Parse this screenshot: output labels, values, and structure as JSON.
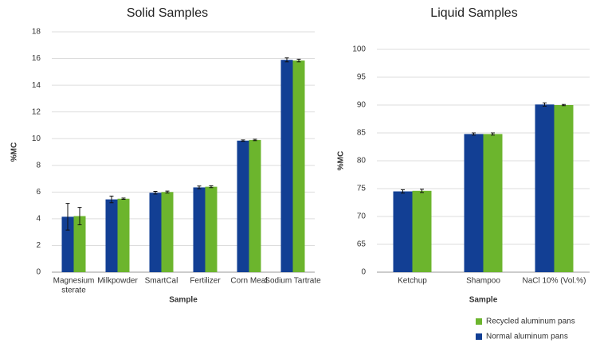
{
  "chart_data": [
    {
      "type": "bar",
      "title": "Solid Samples",
      "y_label": "%MC",
      "x_label": "Sample",
      "categories": [
        [
          "Magnesium",
          "sterate"
        ],
        "Milkpowder",
        "SmartCal",
        "Fertilizer",
        "Corn Meal",
        "Sodium Tartrate"
      ],
      "series": [
        {
          "color": "#123f94",
          "values": [
            4.15,
            5.45,
            5.95,
            6.35,
            9.85,
            15.9
          ],
          "errors": [
            1.0,
            0.25,
            0.1,
            0.1,
            0.05,
            0.15
          ]
        },
        {
          "color": "#6cb52d",
          "values": [
            4.2,
            5.5,
            6.0,
            6.4,
            9.9,
            15.85
          ],
          "errors": [
            0.65,
            0.05,
            0.07,
            0.07,
            0.05,
            0.1
          ]
        }
      ],
      "ylim": [
        0,
        18
      ],
      "yticks": [
        0,
        2,
        4,
        6,
        8,
        10,
        12,
        14,
        16,
        18
      ],
      "grid": true
    },
    {
      "type": "bar",
      "title": "Liquid Samples",
      "y_label": "%MC",
      "x_label": "Sample",
      "categories": [
        "Ketchup",
        "Shampoo",
        "NaCl 10% (Vol.%)"
      ],
      "series": [
        {
          "name": "Normal aluminum pans",
          "color": "#123f94",
          "values": [
            74.5,
            84.8,
            90.1
          ],
          "errors": [
            0.3,
            0.2,
            0.3
          ]
        },
        {
          "name": "Recycled aluminum pans",
          "color": "#6cb52d",
          "values": [
            74.6,
            84.8,
            90.0
          ],
          "errors": [
            0.3,
            0.2,
            0.1
          ]
        }
      ],
      "ylim": [
        0,
        100
      ],
      "yticks": [
        0,
        65,
        70,
        75,
        80,
        85,
        90,
        95,
        100
      ],
      "axis_break": true,
      "grid": true
    }
  ]
}
